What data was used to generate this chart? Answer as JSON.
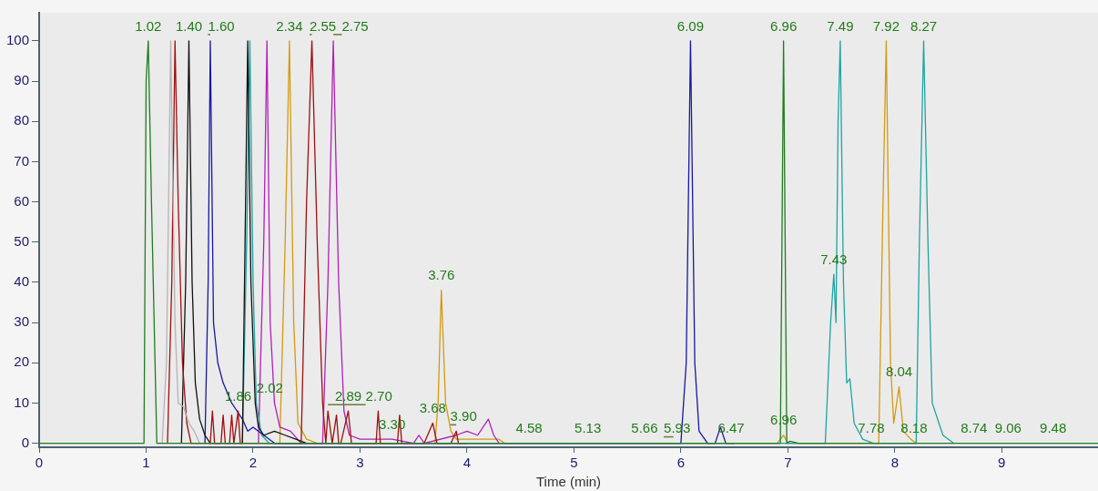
{
  "chart_data": {
    "type": "line",
    "xlabel": "Time (min)",
    "xlim": [
      0,
      9.9
    ],
    "xticks": [
      0,
      1,
      2,
      3,
      4,
      5,
      6,
      7,
      8,
      9
    ],
    "ylim": [
      -1,
      107
    ],
    "yticks": [
      0,
      10,
      20,
      30,
      40,
      50,
      60,
      70,
      80,
      90,
      100
    ],
    "grid": false,
    "legend": false,
    "marker": "none",
    "line_style": "solid",
    "series": [
      {
        "color": "#1e7d1e",
        "x": [
          0,
          0.98,
          1.0,
          1.02,
          1.05,
          1.1,
          1.2,
          6.9,
          6.93,
          6.96,
          6.99,
          7.02,
          7.1,
          9.9
        ],
        "values": [
          0,
          0,
          90,
          100,
          60,
          0,
          0,
          0,
          0,
          100,
          0,
          0.5,
          0,
          0
        ]
      },
      {
        "color": "#b4b4b4",
        "x": [
          1.15,
          1.19,
          1.23,
          1.27,
          1.3,
          1.35,
          1.4,
          1.45,
          1.5
        ],
        "values": [
          0,
          20,
          100,
          30,
          10,
          9,
          5,
          3,
          0
        ]
      },
      {
        "color": "#a00f0f",
        "x": [
          1.2,
          1.24,
          1.27,
          1.3,
          1.34,
          1.38,
          1.42,
          1.5,
          1.6,
          1.62,
          1.64,
          1.7,
          1.72,
          1.74,
          1.78,
          1.8,
          1.82,
          1.86,
          1.88,
          1.9,
          2.45,
          2.5,
          2.55,
          2.6,
          2.65,
          2.68,
          2.7,
          2.74,
          2.78,
          2.8,
          2.82,
          2.89,
          2.92,
          2.94,
          3.15,
          3.17,
          3.19,
          3.35,
          3.37,
          3.39,
          3.6,
          3.68,
          3.72,
          3.85,
          3.9,
          3.92,
          4.0
        ],
        "values": [
          0,
          40,
          100,
          60,
          20,
          5,
          0,
          0,
          0,
          8,
          0,
          0,
          7,
          0,
          0,
          7,
          0,
          8,
          0,
          0,
          0,
          60,
          100,
          50,
          10,
          0,
          8,
          0,
          7,
          0,
          0,
          8,
          0,
          0,
          0,
          8,
          0,
          0,
          7,
          0,
          0,
          5,
          0,
          0,
          3,
          0,
          0
        ]
      },
      {
        "color": "#111111",
        "x": [
          1.33,
          1.37,
          1.4,
          1.43,
          1.46,
          1.5,
          1.55,
          1.6,
          1.9,
          1.93,
          1.95,
          1.98,
          2.02,
          2.05,
          2.1,
          2.2,
          2.3,
          2.4,
          2.5
        ],
        "values": [
          0,
          40,
          100,
          40,
          15,
          6,
          2,
          0,
          0,
          60,
          100,
          40,
          10,
          4,
          2,
          3,
          2,
          1,
          0
        ]
      },
      {
        "color": "#1818a0",
        "x": [
          1.55,
          1.58,
          1.6,
          1.63,
          1.67,
          1.72,
          1.8,
          1.85,
          1.9,
          1.95,
          2.0,
          2.1,
          2.2,
          6.0,
          6.05,
          6.09,
          6.13,
          6.17,
          6.25,
          6.32,
          6.37,
          6.42,
          6.5
        ],
        "values": [
          0,
          40,
          100,
          30,
          20,
          15,
          10,
          8,
          6,
          3,
          4,
          2,
          0,
          0,
          20,
          100,
          20,
          3,
          0,
          0,
          4,
          0,
          0
        ]
      },
      {
        "color": "#1fa3a3",
        "x": [
          1.9,
          1.94,
          1.97,
          2.0,
          2.03,
          2.08,
          2.15,
          7.35,
          7.4,
          7.43,
          7.45,
          7.47,
          7.49,
          7.52,
          7.55,
          7.58,
          7.62,
          7.7,
          7.8,
          8.2,
          8.23,
          8.27,
          8.31,
          8.35,
          8.45,
          8.55
        ],
        "values": [
          0,
          50,
          100,
          40,
          10,
          2,
          0,
          0,
          30,
          42,
          30,
          80,
          100,
          40,
          15,
          16,
          5,
          1,
          0,
          0,
          50,
          100,
          50,
          10,
          2,
          0
        ]
      },
      {
        "color": "#b020b8",
        "x": [
          2.05,
          2.1,
          2.13,
          2.16,
          2.2,
          2.25,
          2.35,
          2.45,
          2.65,
          2.7,
          2.75,
          2.8,
          2.85,
          2.9,
          3.0,
          3.3,
          3.5,
          3.55,
          3.6,
          3.9,
          4.0,
          4.1,
          4.2,
          4.25,
          4.3
        ],
        "values": [
          0,
          50,
          100,
          30,
          10,
          4,
          3,
          0,
          0,
          40,
          100,
          40,
          8,
          2,
          1,
          1,
          0,
          2,
          0,
          2,
          3,
          2,
          6,
          2,
          0
        ]
      },
      {
        "color": "#d49a12",
        "x": [
          2.25,
          2.3,
          2.34,
          2.38,
          2.42,
          2.5,
          2.6,
          3.7,
          3.73,
          3.76,
          3.8,
          3.85,
          3.9,
          4.3,
          4.35,
          6.9,
          6.96,
          7.0,
          7.85,
          7.89,
          7.92,
          7.96,
          7.99,
          8.04,
          8.08,
          8.15,
          8.2
        ],
        "values": [
          0,
          50,
          100,
          30,
          5,
          1,
          0,
          0,
          10,
          38,
          10,
          3,
          1,
          1,
          0,
          0,
          2,
          0,
          0,
          60,
          100,
          20,
          5,
          14,
          3,
          1,
          0
        ]
      }
    ],
    "annotations": [
      {
        "text": "1.02",
        "x": 1.02,
        "y": 100
      },
      {
        "text": "1.40",
        "x": 1.4,
        "y": 100
      },
      {
        "text": "1.60",
        "x": 1.6,
        "y": 100
      },
      {
        "text": "2.34",
        "x": 2.34,
        "y": 100
      },
      {
        "text": "2.55",
        "x": 2.55,
        "y": 100
      },
      {
        "text": "2.75",
        "x": 2.75,
        "y": 100
      },
      {
        "text": "6.09",
        "x": 6.09,
        "y": 100
      },
      {
        "text": "6.96",
        "x": 6.96,
        "y": 100
      },
      {
        "text": "7.49",
        "x": 7.49,
        "y": 100
      },
      {
        "text": "7.92",
        "x": 7.92,
        "y": 100
      },
      {
        "text": "8.27",
        "x": 8.27,
        "y": 100
      },
      {
        "text": "3.76",
        "x": 3.76,
        "y": 38
      },
      {
        "text": "7.43",
        "x": 7.43,
        "y": 42
      },
      {
        "text": "8.04",
        "x": 8.04,
        "y": 14
      },
      {
        "text": "2.89",
        "x": 2.89,
        "y": 8
      },
      {
        "text": "1.86",
        "x": 1.86,
        "y": 8
      },
      {
        "text": "2.02",
        "x": 2.02,
        "y": 10
      },
      {
        "text": "3.68",
        "x": 3.68,
        "y": 5
      },
      {
        "text": "3.90",
        "x": 3.9,
        "y": 3
      },
      {
        "text": "2.70",
        "x": 2.7,
        "y": 8
      },
      {
        "text": "3.30",
        "x": 3.3,
        "y": 1
      },
      {
        "text": "4.58",
        "x": 4.58,
        "y": 0
      },
      {
        "text": "5.13",
        "x": 5.13,
        "y": 0
      },
      {
        "text": "5.66",
        "x": 5.66,
        "y": 0
      },
      {
        "text": "5.93",
        "x": 5.93,
        "y": 0
      },
      {
        "text": "6.47",
        "x": 6.47,
        "y": 0
      },
      {
        "text": "6.96",
        "x": 6.96,
        "y": 2
      },
      {
        "text": "7.78",
        "x": 7.78,
        "y": 0
      },
      {
        "text": "8.18",
        "x": 8.18,
        "y": 0
      },
      {
        "text": "8.74",
        "x": 8.74,
        "y": 0
      },
      {
        "text": "9.06",
        "x": 9.06,
        "y": 0
      },
      {
        "text": "9.48",
        "x": 9.48,
        "y": 0
      }
    ]
  }
}
